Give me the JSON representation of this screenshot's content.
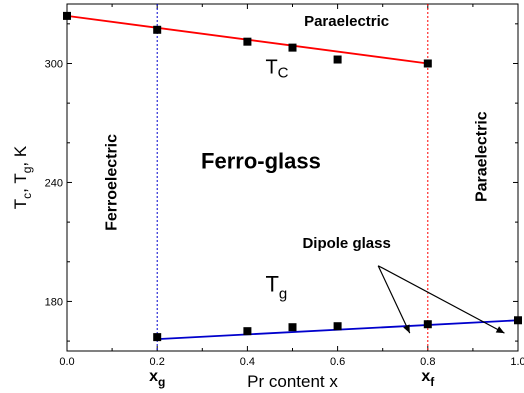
{
  "chart_data": {
    "type": "scatter",
    "xlabel": "Pr content x",
    "ylabel": "T",
    "ylabel_parts": {
      "T1": "T",
      "c": "c",
      "sep": ", ",
      "T2": "T",
      "g": "g",
      "unit": ", K"
    },
    "xlim": [
      0.0,
      1.0
    ],
    "ylim": [
      155,
      330
    ],
    "x_ticks": [
      0.0,
      0.2,
      0.4,
      0.6,
      0.8,
      1.0
    ],
    "x_tick_labels": [
      "0.0",
      "0.2",
      "0.4",
      "0.6",
      "0.8",
      "1.0"
    ],
    "y_ticks": [
      180,
      240,
      300
    ],
    "y_tick_labels": [
      "180",
      "240",
      "300"
    ],
    "series": [
      {
        "name": "Tc",
        "color": "#ff0000",
        "points": [
          {
            "x": 0.0,
            "y": 324
          },
          {
            "x": 0.2,
            "y": 317
          },
          {
            "x": 0.4,
            "y": 311
          },
          {
            "x": 0.5,
            "y": 308
          },
          {
            "x": 0.6,
            "y": 302
          },
          {
            "x": 0.8,
            "y": 300
          }
        ],
        "fit": {
          "x": [
            0.0,
            0.8
          ],
          "y": [
            324,
            300
          ]
        }
      },
      {
        "name": "Tg",
        "color": "#0000cc",
        "points": [
          {
            "x": 0.2,
            "y": 162
          },
          {
            "x": 0.4,
            "y": 165
          },
          {
            "x": 0.5,
            "y": 167
          },
          {
            "x": 0.6,
            "y": 167.5
          },
          {
            "x": 0.8,
            "y": 168.5
          },
          {
            "x": 1.0,
            "y": 170.5
          }
        ],
        "fit": {
          "x": [
            0.2,
            1.0
          ],
          "y": [
            161,
            170.5
          ]
        }
      }
    ],
    "vlines": [
      {
        "x": 0.2,
        "color": "#0000cc"
      },
      {
        "x": 0.8,
        "color": "#ff0000"
      }
    ],
    "annotations": {
      "tc_label": {
        "main": "T",
        "sub": "C",
        "x": 0.44,
        "y": 295
      },
      "tg_label": {
        "main": "T",
        "sub": "g",
        "x": 0.44,
        "y": 185
      },
      "paraelectric_top": {
        "text": "Paraelectric",
        "x": 0.62,
        "y": 319
      },
      "ferroelectric": {
        "text": "Ferroelectric",
        "x": 0.11,
        "y": 240
      },
      "ferro_glass": {
        "text": "Ferro-glass",
        "x": 0.43,
        "y": 247
      },
      "paraelectric_right": {
        "text": "Paraelectric",
        "x": 0.93,
        "y": 253
      },
      "dipole_glass": {
        "text": "Dipole glass",
        "x": 0.62,
        "y": 207
      },
      "xg": {
        "main": "x",
        "sub": "g",
        "x": 0.2
      },
      "xf": {
        "main": "x",
        "sub": "f",
        "x": 0.8
      }
    },
    "arrows": {
      "from": {
        "x": 0.69,
        "y": 198
      },
      "to": [
        {
          "x": 0.76,
          "y": 164
        },
        {
          "x": 0.97,
          "y": 164
        }
      ]
    }
  }
}
